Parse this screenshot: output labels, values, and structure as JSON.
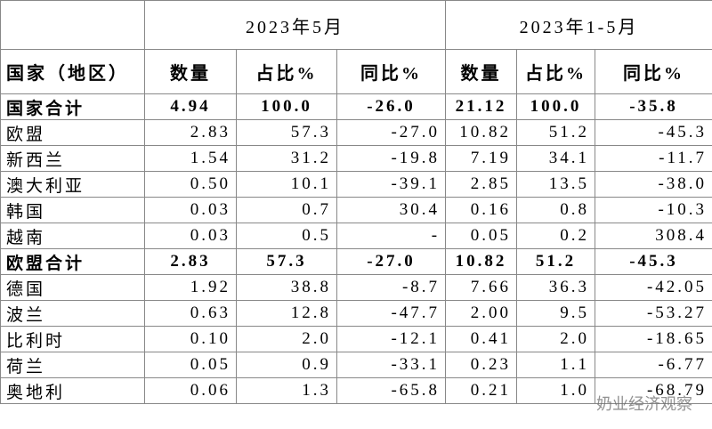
{
  "header": {
    "period_1": "2023年5月",
    "period_2": "2023年1-5月"
  },
  "table": {
    "columns": [
      "国家（地区）",
      "数量",
      "占比%",
      "同比%",
      "数量",
      "占比%",
      "同比%"
    ],
    "rows": [
      [
        "国家合计",
        "4.94",
        "100.0",
        "-26.0",
        "21.12",
        "100.0",
        "-35.8"
      ],
      [
        "欧盟",
        "2.83",
        "57.3",
        "-27.0",
        "10.82",
        "51.2",
        "-45.3"
      ],
      [
        "新西兰",
        "1.54",
        "31.2",
        "-19.8",
        "7.19",
        "34.1",
        "-11.7"
      ],
      [
        "澳大利亚",
        "0.50",
        "10.1",
        "-39.1",
        "2.85",
        "13.5",
        "-38.0"
      ],
      [
        "韩国",
        "0.03",
        "0.7",
        "30.4",
        "0.16",
        "0.8",
        "-10.3"
      ],
      [
        "越南",
        "0.03",
        "0.5",
        "-",
        "0.05",
        "0.2",
        "308.4"
      ],
      [
        "欧盟合计",
        "2.83",
        "57.3",
        "-27.0",
        "10.82",
        "51.2",
        "-45.3"
      ],
      [
        "德国",
        "1.92",
        "38.8",
        "-8.7",
        "7.66",
        "36.3",
        "-42.05"
      ],
      [
        "波兰",
        "0.63",
        "12.8",
        "-47.7",
        "2.00",
        "9.5",
        "-53.27"
      ],
      [
        "比利时",
        "0.10",
        "2.0",
        "-12.1",
        "0.41",
        "2.0",
        "-18.65"
      ],
      [
        "荷兰",
        "0.05",
        "0.9",
        "-33.1",
        "0.23",
        "1.1",
        "-6.77"
      ],
      [
        "奥地利",
        "0.06",
        "1.3",
        "-65.8",
        "0.21",
        "1.0",
        "-68.79"
      ]
    ],
    "bold_rows": [
      0,
      6
    ]
  },
  "watermark": "奶业经济观察"
}
